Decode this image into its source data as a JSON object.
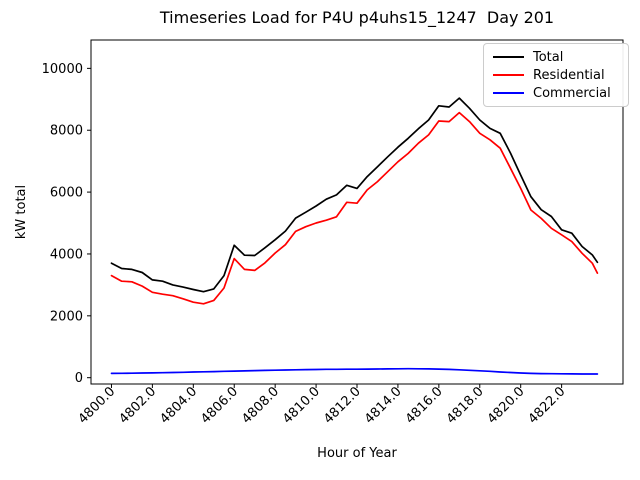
{
  "title": "Timeseries Load for P4U p4uhs15_1247  Day 201",
  "chart_data": {
    "type": "line",
    "title": "Timeseries Load for P4U p4uhs15_1247  Day 201",
    "xlabel": "Hour of Year",
    "ylabel": "kW total",
    "xlim": [
      4799.0,
      4825.0
    ],
    "ylim": [
      -204,
      10917
    ],
    "grid": false,
    "legend_position": "upper right",
    "xticks": {
      "values": [
        4800,
        4802,
        4804,
        4806,
        4808,
        4810,
        4812,
        4814,
        4816,
        4818,
        4820,
        4822
      ],
      "labels": [
        "4800.0",
        "4802.0",
        "4804.0",
        "4806.0",
        "4808.0",
        "4810.0",
        "4812.0",
        "4814.0",
        "4816.0",
        "4818.0",
        "4820.0",
        "4822.0"
      ]
    },
    "yticks": {
      "values": [
        0,
        2000,
        4000,
        6000,
        8000,
        10000
      ],
      "labels": [
        "0",
        "2000",
        "4000",
        "6000",
        "8000",
        "10000"
      ]
    },
    "x": [
      4800.0,
      4800.5,
      4801.0,
      4801.5,
      4802.0,
      4802.5,
      4803.0,
      4803.5,
      4804.0,
      4804.5,
      4805.0,
      4805.5,
      4806.0,
      4806.5,
      4807.0,
      4807.5,
      4808.0,
      4808.5,
      4809.0,
      4809.5,
      4810.0,
      4810.5,
      4811.0,
      4811.5,
      4812.0,
      4812.5,
      4813.0,
      4813.5,
      4814.0,
      4814.5,
      4815.0,
      4815.5,
      4816.0,
      4816.5,
      4817.0,
      4817.5,
      4818.0,
      4818.5,
      4819.0,
      4819.5,
      4820.0,
      4820.5,
      4821.0,
      4821.5,
      4822.0,
      4822.5,
      4823.0,
      4823.5,
      4823.75
    ],
    "series": [
      {
        "name": "Total",
        "color": "#000000",
        "values": [
          3700,
          3530,
          3500,
          3400,
          3160,
          3120,
          3000,
          2930,
          2850,
          2780,
          2870,
          3300,
          4280,
          3960,
          3950,
          4200,
          4460,
          4740,
          5160,
          5350,
          5550,
          5770,
          5910,
          6220,
          6120,
          6500,
          6820,
          7140,
          7450,
          7740,
          8050,
          8330,
          8790,
          8750,
          9040,
          8710,
          8330,
          8060,
          7900,
          7260,
          6550,
          5850,
          5430,
          5210,
          4780,
          4670,
          4240,
          3970,
          3730
        ]
      },
      {
        "name": "Residential",
        "color": "#ff0000",
        "values": [
          3300,
          3120,
          3100,
          2960,
          2760,
          2700,
          2650,
          2550,
          2440,
          2390,
          2500,
          2900,
          3850,
          3500,
          3470,
          3710,
          4030,
          4300,
          4730,
          4880,
          5000,
          5090,
          5200,
          5670,
          5640,
          6070,
          6340,
          6660,
          6980,
          7250,
          7580,
          7850,
          8300,
          8280,
          8570,
          8280,
          7900,
          7690,
          7420,
          6770,
          6120,
          5420,
          5150,
          4830,
          4620,
          4400,
          4020,
          3700,
          3380
        ]
      },
      {
        "name": "Commercial",
        "color": "#0000ff",
        "values": [
          140,
          142,
          146,
          150,
          155,
          160,
          168,
          175,
          183,
          190,
          198,
          205,
          213,
          220,
          228,
          235,
          243,
          250,
          256,
          261,
          266,
          270,
          272,
          274,
          276,
          279,
          282,
          285,
          288,
          290,
          288,
          284,
          278,
          268,
          255,
          240,
          222,
          205,
          185,
          168,
          152,
          140,
          133,
          128,
          125,
          122,
          120,
          118,
          118
        ]
      }
    ]
  }
}
